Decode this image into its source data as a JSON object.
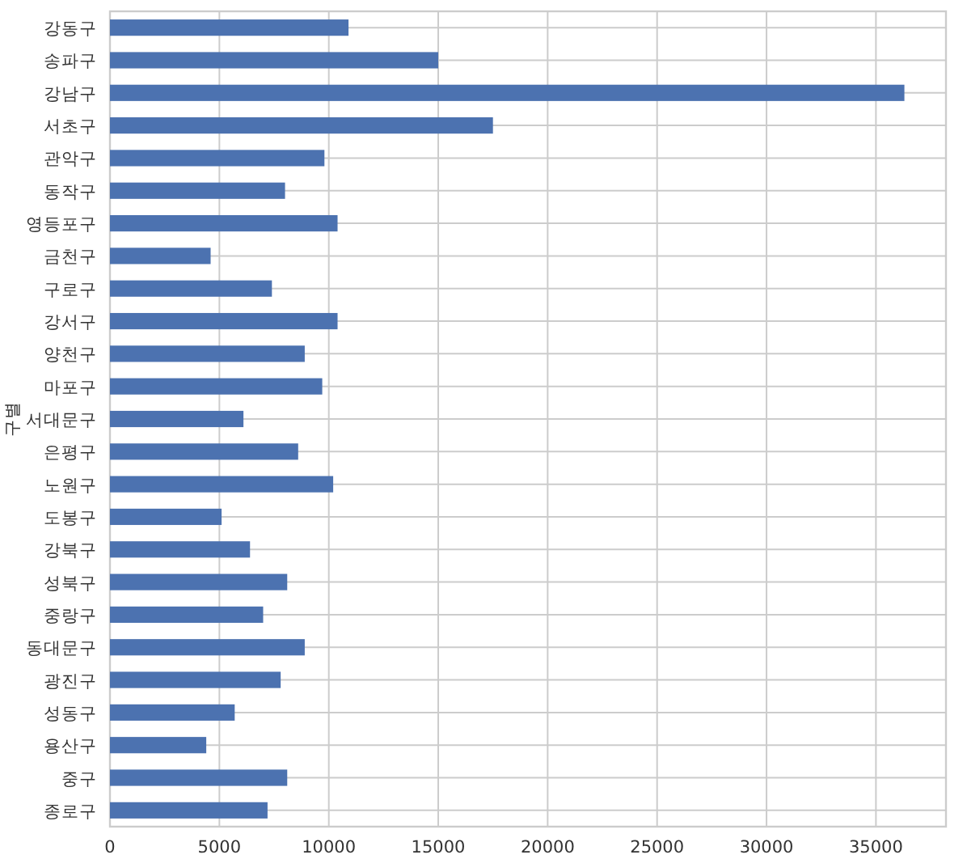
{
  "chart_data": {
    "type": "bar",
    "orientation": "horizontal",
    "ylabel": "구별",
    "categories": [
      "강동구",
      "송파구",
      "강남구",
      "서초구",
      "관악구",
      "동작구",
      "영등포구",
      "금천구",
      "구로구",
      "강서구",
      "양천구",
      "마포구",
      "서대문구",
      "은평구",
      "노원구",
      "도봉구",
      "강북구",
      "성북구",
      "중랑구",
      "동대문구",
      "광진구",
      "성동구",
      "용산구",
      "중구",
      "종로구"
    ],
    "values": [
      10900,
      15000,
      36300,
      17500,
      9800,
      8000,
      10400,
      4600,
      7400,
      10400,
      8900,
      9700,
      6100,
      8600,
      10200,
      5100,
      6400,
      8100,
      7000,
      8900,
      7800,
      5700,
      4400,
      8100,
      7200
    ],
    "color": "#4c72b0",
    "xlim": [
      0,
      38200
    ],
    "xticks": [
      0,
      5000,
      10000,
      15000,
      20000,
      25000,
      30000,
      35000
    ],
    "grid": true
  }
}
